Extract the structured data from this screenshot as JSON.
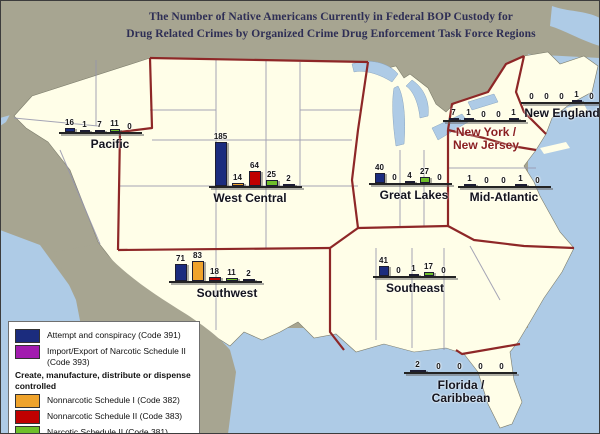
{
  "title": {
    "line1": "The Number of Native Americans Currently in Federal BOP Custody for",
    "line2": "Drug Related Crimes by Organized Crime Drug Enforcement Task Force Regions"
  },
  "legend": {
    "items": [
      {
        "type": "item",
        "code": "391",
        "label": "Attempt and conspiracy  (Code 391)",
        "color": "#1b2c7e"
      },
      {
        "type": "item",
        "code": "393",
        "label": "Import/Export of Narcotic Schedule II (Code 393)",
        "color": "#a21caf"
      },
      {
        "type": "header",
        "label": "Create, manufacture, distribute or dispense controlled"
      },
      {
        "type": "item",
        "code": "382",
        "label": "Nonnarcotic Schedule I  (Code 382)",
        "color": "#efa32b"
      },
      {
        "type": "item",
        "code": "383",
        "label": "Nonnarcotic Schedule II  (Code 383)",
        "color": "#c00000"
      },
      {
        "type": "item",
        "code": "381",
        "label": "Narcotic Schedule II  (Code 381)",
        "color": "#6fbf2a"
      }
    ]
  },
  "map": {
    "colors": {
      "ocean": "#aecbe6",
      "non_us_land": "#a7a591",
      "us_land": "#fffee8",
      "region_boundary": "#8e2727",
      "state_boundary": "#9595ad"
    }
  },
  "chart_data": {
    "type": "bar",
    "title": "The Number of Native Americans Currently in Federal BOP Custody for Drug Related Crimes by Organized Crime Drug Enforcement Task Force Regions",
    "legend_position": "bottom-left",
    "bar_order": [
      "391",
      "382",
      "383",
      "381",
      "393"
    ],
    "series_labels": {
      "391": "Attempt and conspiracy (Code 391)",
      "393": "Import/Export of Narcotic Schedule II (Code 393)",
      "382": "Nonnarcotic Schedule I (Code 382)",
      "383": "Nonnarcotic Schedule II (Code 383)",
      "381": "Narcotic Schedule II (Code 381)"
    },
    "colors": {
      "391": "#1b2c7e",
      "393": "#a21caf",
      "382": "#efa32b",
      "383": "#c00000",
      "381": "#6fbf2a"
    },
    "regions": [
      {
        "id": "pacific",
        "name": "Pacific",
        "label_lines": [
          "Pacific"
        ],
        "values_by_code": {
          "391": 16,
          "382": 1,
          "383": 7,
          "381": 11,
          "393": 0
        }
      },
      {
        "id": "west-central",
        "name": "West Central",
        "label_lines": [
          "West Central"
        ],
        "values_by_code": {
          "391": 185,
          "382": 14,
          "383": 64,
          "381": 25,
          "393": 2
        }
      },
      {
        "id": "southwest",
        "name": "Southwest",
        "label_lines": [
          "Southwest"
        ],
        "values_by_code": {
          "391": 71,
          "382": 83,
          "383": 18,
          "381": 11,
          "393": 2
        }
      },
      {
        "id": "great-lakes",
        "name": "Great Lakes",
        "label_lines": [
          "Great Lakes"
        ],
        "values_by_code": {
          "391": 40,
          "382": 0,
          "383": 4,
          "381": 27,
          "393": 0
        }
      },
      {
        "id": "mid-atlantic",
        "name": "Mid-Atlantic",
        "label_lines": [
          "Mid-Atlantic"
        ],
        "values_by_code": {
          "391": 1,
          "382": 0,
          "383": 0,
          "381": 1,
          "393": 0
        }
      },
      {
        "id": "new-york-new-jersey",
        "name": "New York / New Jersey",
        "label_lines": [
          "New York /",
          "New Jersey"
        ],
        "values_by_code": {
          "391": 7,
          "382": 1,
          "383": 0,
          "381": 0,
          "393": 1
        }
      },
      {
        "id": "new-england",
        "name": "New England",
        "label_lines": [
          "New England"
        ],
        "values_by_code": {
          "391": 0,
          "382": 0,
          "383": 0,
          "381": 1,
          "393": 0
        }
      },
      {
        "id": "southeast",
        "name": "Southeast",
        "label_lines": [
          "Southeast"
        ],
        "values_by_code": {
          "391": 41,
          "382": 0,
          "383": 1,
          "381": 17,
          "393": 0
        }
      },
      {
        "id": "florida-caribbean",
        "name": "Florida / Caribbean",
        "label_lines": [
          "Florida /",
          "Caribbean"
        ],
        "values_by_code": {
          "391": 2,
          "382": 0,
          "383": 0,
          "381": 0,
          "393": 0
        }
      }
    ]
  }
}
